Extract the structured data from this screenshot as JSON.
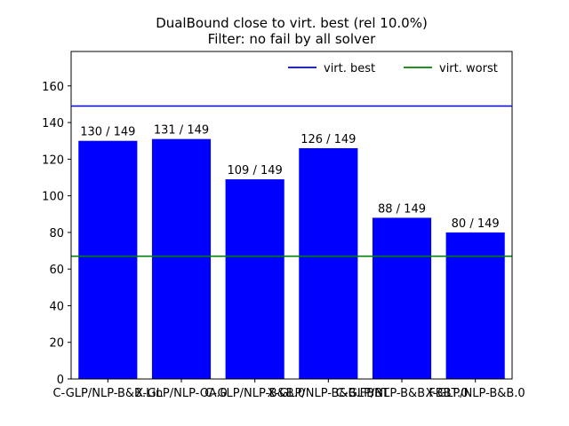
{
  "chart_data": {
    "type": "bar",
    "title": "DualBound close to virt. best (rel 10.0%)",
    "subtitle": "Filter: no fail by all solver",
    "categories": [
      "C-GLP/NLP-B&B.Lin",
      "X-GLP/NLP-OA.0",
      "C-GLP/NLP-B&B.0",
      "X-GLP/NLP-B&B.FBBT",
      "C-GLP/NLP-B&B.FBBT.0",
      "X-GLP/NLP-B&B.0"
    ],
    "values": [
      130,
      131,
      109,
      126,
      88,
      80
    ],
    "data_labels": [
      "130 / 149",
      "131 / 149",
      "109 / 149",
      "126 / 149",
      "88 / 149",
      "80 / 149"
    ],
    "total": 149,
    "ylim": [
      0,
      178.8
    ],
    "yticks": [
      0,
      20,
      40,
      60,
      80,
      100,
      120,
      140,
      160
    ],
    "xlabel": "",
    "ylabel": "",
    "bar_color": "#0000ff",
    "reference_lines": [
      {
        "name": "virt. best",
        "value": 149,
        "color": "#0000ff"
      },
      {
        "name": "virt. worst",
        "value": 67,
        "color": "#008000"
      }
    ],
    "legend": {
      "position": "top-right",
      "entries": [
        {
          "label": "virt. best",
          "color": "#0000ff"
        },
        {
          "label": "virt. worst",
          "color": "#008000"
        }
      ]
    }
  }
}
